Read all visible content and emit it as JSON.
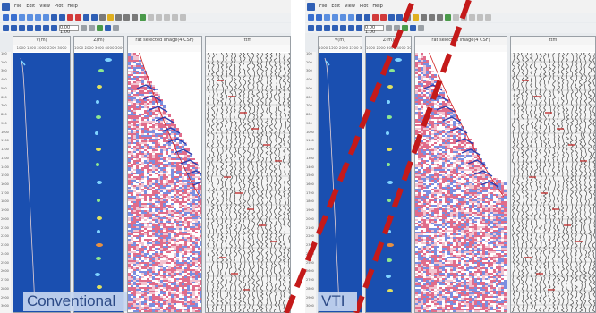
{
  "menu": {
    "items": [
      "File",
      "Edit",
      "View",
      "Plot",
      "Help"
    ]
  },
  "toolbar": {
    "depth_value": "0.00 1.00"
  },
  "windows": [
    {
      "id": "conventional",
      "label": "Conventional",
      "panels": [
        {
          "title": "V(m)",
          "axis": "1000 1500 2000 2500 3000"
        },
        {
          "title": "Z(m)",
          "axis": "1000 2000 3000 4000 5000"
        },
        {
          "title": "rat selected image(4 CSF)",
          "axis": ""
        },
        {
          "title": "ttm",
          "axis": ""
        }
      ]
    },
    {
      "id": "vti",
      "label": "VTI",
      "panels": [
        {
          "title": "V(m)",
          "axis": "1000 1500 2000 2500 3000"
        },
        {
          "title": "Z(m)",
          "axis": "1000 2000 3000 4000 5000"
        },
        {
          "title": "rat selected image(4 CSF)",
          "axis": ""
        },
        {
          "title": "ttm",
          "axis": ""
        }
      ]
    }
  ],
  "depth_labels": [
    "100",
    "200",
    "300",
    "400",
    "500",
    "600",
    "700",
    "800",
    "900",
    "1000",
    "1100",
    "1200",
    "1300",
    "1400",
    "1500",
    "1600",
    "1700",
    "1800",
    "1900",
    "2000",
    "2100",
    "2200",
    "2300",
    "2400",
    "2500",
    "2600",
    "2700",
    "2800",
    "2900",
    "3000"
  ],
  "colors": {
    "panel_blue": "#1a4fb0",
    "dash_red": "#c41a1a",
    "label_bg": "#c6d6f0",
    "label_text": "#2c4a86"
  }
}
